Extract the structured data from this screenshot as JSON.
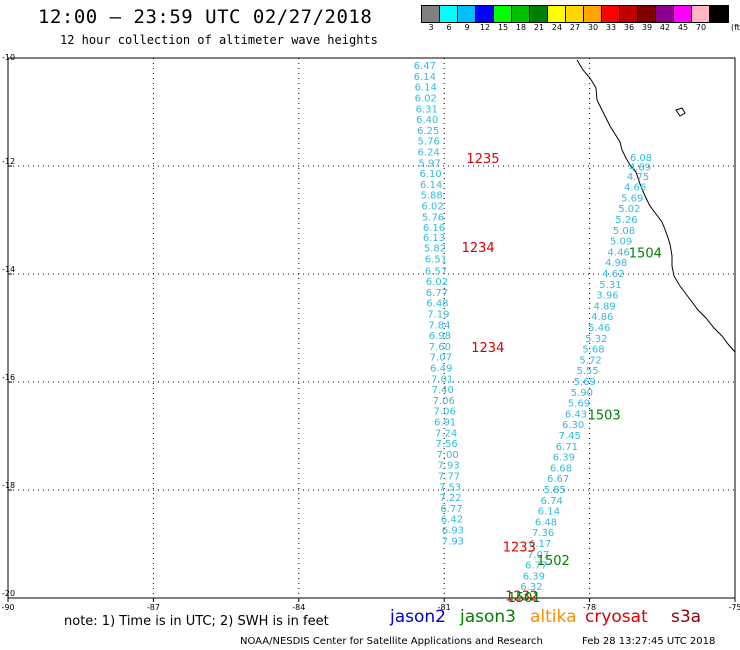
{
  "header": {
    "title": "12:00 — 23:59 UTC 02/27/2018",
    "subtitle": "12 hour collection of altimeter wave heights"
  },
  "color_scale": {
    "unit_label": "(ft)",
    "bins": [
      {
        "label": "3",
        "color": "#808080"
      },
      {
        "label": "6",
        "color": "#00ffff"
      },
      {
        "label": "9",
        "color": "#00bfff"
      },
      {
        "label": "12",
        "color": "#0000ff"
      },
      {
        "label": "15",
        "color": "#00ff00"
      },
      {
        "label": "18",
        "color": "#00c000"
      },
      {
        "label": "21",
        "color": "#008000"
      },
      {
        "label": "24",
        "color": "#ffff00"
      },
      {
        "label": "27",
        "color": "#ffd700"
      },
      {
        "label": "30",
        "color": "#ffa500"
      },
      {
        "label": "33",
        "color": "#ff0000"
      },
      {
        "label": "36",
        "color": "#c00000"
      },
      {
        "label": "39",
        "color": "#800000"
      },
      {
        "label": "42",
        "color": "#8b008b"
      },
      {
        "label": "45",
        "color": "#ff00ff"
      },
      {
        "label": "70",
        "color": "#ffb6c1"
      },
      {
        "label": "",
        "color": "#000000"
      }
    ]
  },
  "axes": {
    "lon_ticks": [
      "-90",
      "-87",
      "-84",
      "-81",
      "-78",
      "-75"
    ],
    "lat_ticks": [
      "-10",
      "-12",
      "-14",
      "-16",
      "-18",
      "-20"
    ],
    "lon_range": [
      -90,
      -75
    ],
    "lat_range": [
      -20,
      -10
    ]
  },
  "tracks": [
    {
      "satellite": "jason3",
      "points": [
        {
          "lon": -81.4,
          "lat": -10.15,
          "swh": "6.47"
        },
        {
          "lon": -81.4,
          "lat": -10.35,
          "swh": "6.14"
        },
        {
          "lon": -81.38,
          "lat": -10.55,
          "swh": "6.14"
        },
        {
          "lon": -81.38,
          "lat": -10.75,
          "swh": "6.02"
        },
        {
          "lon": -81.36,
          "lat": -10.95,
          "swh": "6.31"
        },
        {
          "lon": -81.35,
          "lat": -11.15,
          "swh": "6.40"
        },
        {
          "lon": -81.33,
          "lat": -11.35,
          "swh": "6.25"
        },
        {
          "lon": -81.32,
          "lat": -11.55,
          "swh": "5.76"
        },
        {
          "lon": -81.32,
          "lat": -11.75,
          "swh": "6.24"
        },
        {
          "lon": -81.3,
          "lat": -11.95,
          "swh": "5.97"
        },
        {
          "lon": -81.28,
          "lat": -12.15,
          "swh": "6.10"
        },
        {
          "lon": -81.27,
          "lat": -12.35,
          "swh": "6.14"
        },
        {
          "lon": -81.26,
          "lat": -12.55,
          "swh": "5.88"
        },
        {
          "lon": -81.24,
          "lat": -12.75,
          "swh": "6.02"
        },
        {
          "lon": -81.23,
          "lat": -12.95,
          "swh": "5.76"
        },
        {
          "lon": -81.21,
          "lat": -13.15,
          "swh": "6.16"
        },
        {
          "lon": -81.21,
          "lat": -13.33,
          "swh": "6.13"
        },
        {
          "lon": -81.19,
          "lat": -13.53,
          "swh": "5.82"
        },
        {
          "lon": -81.17,
          "lat": -13.73,
          "swh": "6.51"
        },
        {
          "lon": -81.17,
          "lat": -13.95,
          "swh": "6.57"
        },
        {
          "lon": -81.15,
          "lat": -14.15,
          "swh": "6.02"
        },
        {
          "lon": -81.15,
          "lat": -14.35,
          "swh": "6.77"
        },
        {
          "lon": -81.14,
          "lat": -14.55,
          "swh": "6.48"
        },
        {
          "lon": -81.12,
          "lat": -14.75,
          "swh": "7.19"
        },
        {
          "lon": -81.1,
          "lat": -14.95,
          "swh": "7.84"
        },
        {
          "lon": -81.09,
          "lat": -15.15,
          "swh": "6.98"
        },
        {
          "lon": -81.09,
          "lat": -15.35,
          "swh": "7.60"
        },
        {
          "lon": -81.07,
          "lat": -15.55,
          "swh": "7.07"
        },
        {
          "lon": -81.06,
          "lat": -15.75,
          "swh": "6.49"
        },
        {
          "lon": -81.04,
          "lat": -15.95,
          "swh": "7.01"
        },
        {
          "lon": -81.03,
          "lat": -16.15,
          "swh": "7.40"
        },
        {
          "lon": -81.01,
          "lat": -16.35,
          "swh": "7.06"
        },
        {
          "lon": -80.99,
          "lat": -16.55,
          "swh": "7.06"
        },
        {
          "lon": -80.98,
          "lat": -16.75,
          "swh": "6.91"
        },
        {
          "lon": -80.96,
          "lat": -16.95,
          "swh": "7.24"
        },
        {
          "lon": -80.95,
          "lat": -17.15,
          "swh": "7.56"
        },
        {
          "lon": -80.93,
          "lat": -17.35,
          "swh": "7.00"
        },
        {
          "lon": -80.91,
          "lat": -17.55,
          "swh": "7.93"
        },
        {
          "lon": -80.9,
          "lat": -17.75,
          "swh": "7.77"
        },
        {
          "lon": -80.88,
          "lat": -17.95,
          "swh": "7.53"
        },
        {
          "lon": -80.87,
          "lat": -18.15,
          "swh": "7.22"
        },
        {
          "lon": -80.85,
          "lat": -18.35,
          "swh": "6.77"
        },
        {
          "lon": -80.84,
          "lat": -18.55,
          "swh": "6.42"
        },
        {
          "lon": -80.82,
          "lat": -18.75,
          "swh": "6.93"
        },
        {
          "lon": -80.82,
          "lat": -18.95,
          "swh": "7.93"
        }
      ]
    },
    {
      "satellite": "jason3",
      "points": [
        {
          "lon": -76.94,
          "lat": -11.85,
          "swh": "6.08"
        },
        {
          "lon": -76.96,
          "lat": -12.03,
          "swh": "4.69"
        },
        {
          "lon": -77.0,
          "lat": -12.2,
          "swh": "4.75"
        },
        {
          "lon": -77.06,
          "lat": -12.4,
          "swh": "4.66"
        },
        {
          "lon": -77.12,
          "lat": -12.6,
          "swh": "5.69"
        },
        {
          "lon": -77.18,
          "lat": -12.8,
          "swh": "5.02"
        },
        {
          "lon": -77.24,
          "lat": -13.0,
          "swh": "5.26"
        },
        {
          "lon": -77.29,
          "lat": -13.2,
          "swh": "5.08"
        },
        {
          "lon": -77.35,
          "lat": -13.4,
          "swh": "5.09"
        },
        {
          "lon": -77.4,
          "lat": -13.6,
          "swh": "4.46"
        },
        {
          "lon": -77.45,
          "lat": -13.8,
          "swh": "4.98"
        },
        {
          "lon": -77.51,
          "lat": -14.0,
          "swh": "4.62"
        },
        {
          "lon": -77.57,
          "lat": -14.2,
          "swh": "5.31"
        },
        {
          "lon": -77.63,
          "lat": -14.4,
          "swh": "3.96"
        },
        {
          "lon": -77.69,
          "lat": -14.6,
          "swh": "4.89"
        },
        {
          "lon": -77.74,
          "lat": -14.8,
          "swh": "4.86"
        },
        {
          "lon": -77.8,
          "lat": -15.0,
          "swh": "5.46"
        },
        {
          "lon": -77.86,
          "lat": -15.2,
          "swh": "5.32"
        },
        {
          "lon": -77.92,
          "lat": -15.4,
          "swh": "5.68"
        },
        {
          "lon": -77.98,
          "lat": -15.6,
          "swh": "5.72"
        },
        {
          "lon": -78.04,
          "lat": -15.8,
          "swh": "5.55"
        },
        {
          "lon": -78.1,
          "lat": -16.0,
          "swh": "5.69"
        },
        {
          "lon": -78.16,
          "lat": -16.2,
          "swh": "5.90"
        },
        {
          "lon": -78.22,
          "lat": -16.4,
          "swh": "5.69"
        },
        {
          "lon": -78.28,
          "lat": -16.6,
          "swh": "6.43"
        },
        {
          "lon": -78.34,
          "lat": -16.8,
          "swh": "6.30"
        },
        {
          "lon": -78.41,
          "lat": -17.0,
          "swh": "7.45"
        },
        {
          "lon": -78.47,
          "lat": -17.2,
          "swh": "6.71"
        },
        {
          "lon": -78.53,
          "lat": -17.4,
          "swh": "6.39"
        },
        {
          "lon": -78.59,
          "lat": -17.6,
          "swh": "6.68"
        },
        {
          "lon": -78.65,
          "lat": -17.8,
          "swh": "6.67"
        },
        {
          "lon": -78.72,
          "lat": -18.0,
          "swh": "5.85"
        },
        {
          "lon": -78.78,
          "lat": -18.2,
          "swh": "6.74"
        },
        {
          "lon": -78.84,
          "lat": -18.4,
          "swh": "6.14"
        },
        {
          "lon": -78.9,
          "lat": -18.6,
          "swh": "6.48"
        },
        {
          "lon": -78.96,
          "lat": -18.8,
          "swh": "7.36"
        },
        {
          "lon": -79.02,
          "lat": -19.0,
          "swh": "6.17"
        },
        {
          "lon": -79.06,
          "lat": -19.2,
          "swh": "7.07"
        },
        {
          "lon": -79.1,
          "lat": -19.4,
          "swh": "6.77"
        },
        {
          "lon": -79.15,
          "lat": -19.6,
          "swh": "6.39"
        },
        {
          "lon": -79.2,
          "lat": -19.8,
          "swh": "6.32"
        }
      ]
    }
  ],
  "time_labels": [
    {
      "text": "1235",
      "color": "#dd0000",
      "lon": -80.2,
      "lat": -11.85
    },
    {
      "text": "1234",
      "color": "#dd0000",
      "lon": -80.3,
      "lat": -13.5
    },
    {
      "text": "1234",
      "color": "#dd0000",
      "lon": -80.1,
      "lat": -15.35
    },
    {
      "text": "1233",
      "color": "#dd0000",
      "lon": -79.45,
      "lat": -19.05
    },
    {
      "text": "1232",
      "color": "#dd0000",
      "lon": -79.4,
      "lat": -19.95
    },
    {
      "text": "1504",
      "color": "#008000",
      "lon": -76.85,
      "lat": -13.6
    },
    {
      "text": "1503",
      "color": "#008000",
      "lon": -77.7,
      "lat": -16.6
    },
    {
      "text": "1502",
      "color": "#008000",
      "lon": -78.75,
      "lat": -19.3
    },
    {
      "text": "1501",
      "color": "#008000",
      "lon": -79.35,
      "lat": -19.98
    }
  ],
  "coastline_color": "#000000",
  "footer": {
    "note": "note:  1) Time is in UTC;  2) SWH is in feet",
    "legend": [
      {
        "name": "jason2",
        "color": "#0000cc"
      },
      {
        "name": "jason3",
        "color": "#008000"
      },
      {
        "name": "altika",
        "color": "#ff8c00"
      },
      {
        "name": "cryosat",
        "color": "#dd0000"
      },
      {
        "name": "s3a",
        "color": "#8b0000"
      }
    ],
    "credit": "NOAA/NESDIS Center for Satellite Applications and Research",
    "timestamp": "Feb 28 13:27:45 UTC 2018"
  },
  "track_color": "#33bbdd"
}
